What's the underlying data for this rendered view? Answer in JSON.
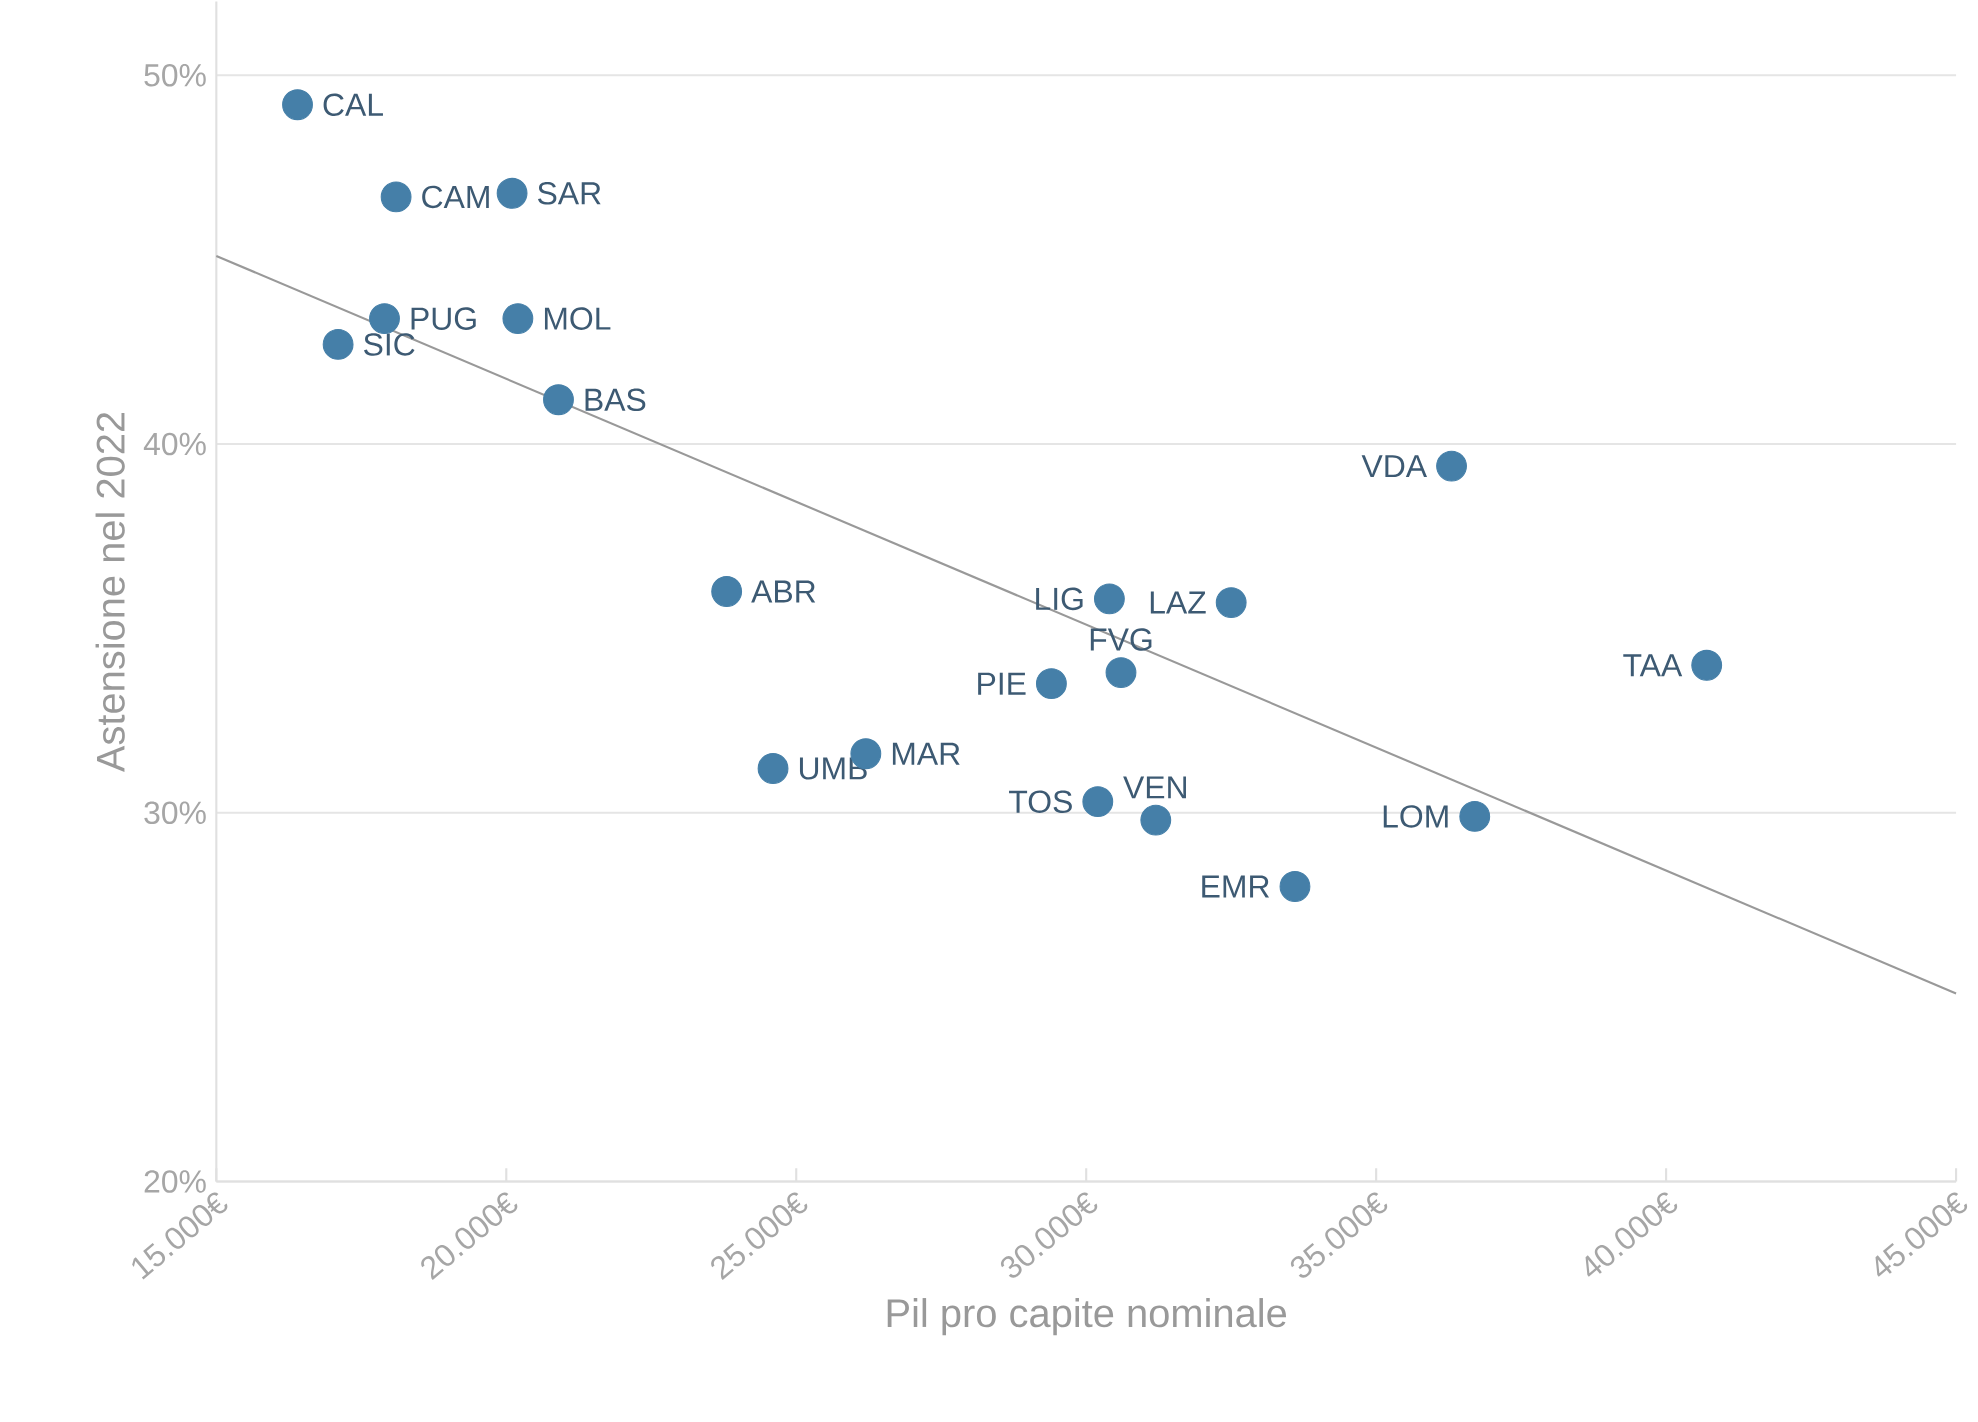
{
  "chart_data": {
    "type": "scatter",
    "xlabel": "Pil pro capite nominale",
    "ylabel": "Astensione nel 2022",
    "xlim": [
      15000,
      45000
    ],
    "ylim": [
      20,
      52
    ],
    "xticks": [
      {
        "value": 15000,
        "label": "15.000€"
      },
      {
        "value": 20000,
        "label": "20.000€"
      },
      {
        "value": 25000,
        "label": "25.000€"
      },
      {
        "value": 30000,
        "label": "30.000€"
      },
      {
        "value": 35000,
        "label": "35.000€"
      },
      {
        "value": 40000,
        "label": "40.000€"
      },
      {
        "value": 45000,
        "label": "45.000€"
      }
    ],
    "yticks": [
      {
        "value": 20,
        "label": "20%"
      },
      {
        "value": 30,
        "label": "30%"
      },
      {
        "value": 40,
        "label": "40%"
      },
      {
        "value": 50,
        "label": "50%"
      }
    ],
    "grid": "y",
    "series": [
      {
        "type": "line",
        "marker": "none",
        "color": "#999999",
        "x": [
          15000,
          45000
        ],
        "values": [
          45.1,
          25.1
        ]
      },
      {
        "marker": "circle",
        "color": "#457fa8",
        "x": [
          16400,
          18100,
          20100,
          17900,
          20200,
          17100,
          20900,
          36300,
          23800,
          30400,
          32500,
          30600,
          29400,
          40700,
          26200,
          24600,
          30200,
          31200,
          36700,
          33600
        ],
        "values": [
          49.2,
          46.7,
          46.8,
          43.4,
          43.4,
          42.7,
          41.2,
          39.4,
          36.0,
          35.8,
          35.7,
          33.8,
          33.5,
          34.0,
          31.6,
          31.2,
          30.3,
          29.8,
          29.9,
          28.0
        ]
      }
    ],
    "annotations": [
      {
        "text": "CAL",
        "x": 16400,
        "y": 49.2
      },
      {
        "text": "CAM",
        "x": 18100,
        "y": 46.7
      },
      {
        "text": "SAR",
        "x": 20100,
        "y": 46.8
      },
      {
        "text": "PUG",
        "x": 17900,
        "y": 43.4
      },
      {
        "text": "MOL",
        "x": 20200,
        "y": 43.4
      },
      {
        "text": "SIC",
        "x": 17100,
        "y": 42.7
      },
      {
        "text": "BAS",
        "x": 20900,
        "y": 41.2
      },
      {
        "text": "VDA",
        "x": 36300,
        "y": 39.4
      },
      {
        "text": "ABR",
        "x": 23800,
        "y": 36.0
      },
      {
        "text": "LIG",
        "x": 30400,
        "y": 35.8
      },
      {
        "text": "LAZ",
        "x": 32500,
        "y": 35.7
      },
      {
        "text": "FVG",
        "x": 30600,
        "y": 33.8
      },
      {
        "text": "PIE",
        "x": 29400,
        "y": 33.5
      },
      {
        "text": "TAA",
        "x": 40700,
        "y": 34.0
      },
      {
        "text": "MAR",
        "x": 26200,
        "y": 31.6
      },
      {
        "text": "UMB",
        "x": 24600,
        "y": 31.2
      },
      {
        "text": "TOS",
        "x": 30200,
        "y": 30.3
      },
      {
        "text": "VEN",
        "x": 31200,
        "y": 29.8
      },
      {
        "text": "LOM",
        "x": 36700,
        "y": 29.9
      },
      {
        "text": "EMR",
        "x": 33600,
        "y": 28.0
      }
    ]
  }
}
